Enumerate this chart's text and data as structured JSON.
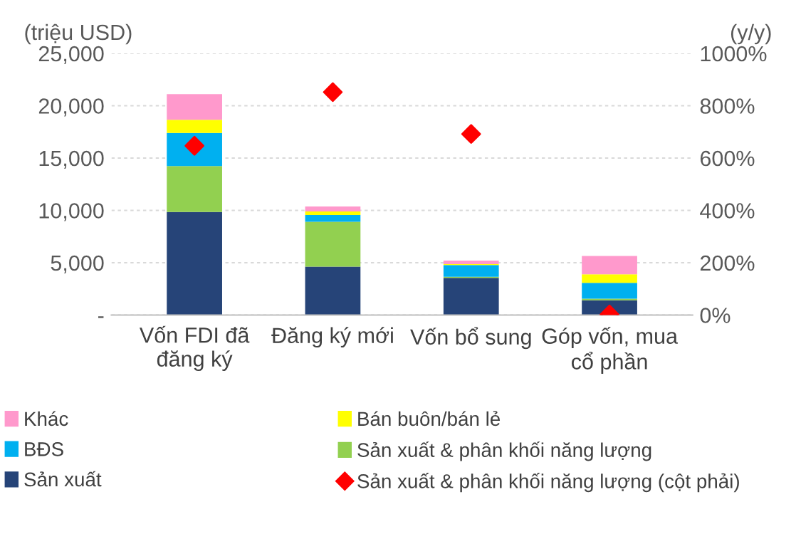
{
  "chart_data": {
    "type": "bar",
    "stacked": true,
    "ylabel": "(triệu USD)",
    "y2label": "(y/y)",
    "categories": [
      "Vốn FDI đã\nđăng ký",
      "Đăng ký mới",
      "Vốn bổ sung",
      "Góp vốn, mua\ncổ phần"
    ],
    "series": [
      {
        "name": "Sản xuất",
        "color": "#264478",
        "values": [
          9850,
          4630,
          3560,
          1410
        ]
      },
      {
        "name": "Sản xuất & phân khối năng lượng",
        "color": "#92d050",
        "values": [
          4380,
          4290,
          100,
          150
        ]
      },
      {
        "name": "BĐS",
        "color": "#00b0f0",
        "values": [
          3170,
          630,
          1120,
          1510
        ]
      },
      {
        "name": "Bán buôn/bán lẻ",
        "color": "#ffff00",
        "values": [
          1260,
          340,
          80,
          830
        ]
      },
      {
        "name": "Khác",
        "color": "#ff99cc",
        "values": [
          2440,
          490,
          340,
          1750
        ]
      },
      {
        "name": "Sản xuất & phân khối năng lượng (cột phải)",
        "type": "scatter",
        "axis": "y2",
        "marker": "diamond",
        "color": "#ff0000",
        "values": [
          647,
          852,
          692,
          2
        ]
      }
    ],
    "ylim": [
      0,
      25000
    ],
    "yticks": [
      {
        "value": 0,
        "label": "-"
      },
      {
        "value": 5000,
        "label": "5,000"
      },
      {
        "value": 10000,
        "label": "10,000"
      },
      {
        "value": 15000,
        "label": "15,000"
      },
      {
        "value": 20000,
        "label": "20,000"
      },
      {
        "value": 25000,
        "label": "25,000"
      }
    ],
    "y2lim": [
      0,
      1000
    ],
    "y2ticks": [
      {
        "value": 0,
        "label": "0%"
      },
      {
        "value": 200,
        "label": "200%"
      },
      {
        "value": 400,
        "label": "400%"
      },
      {
        "value": 600,
        "label": "600%"
      },
      {
        "value": 800,
        "label": "800%"
      },
      {
        "value": 1000,
        "label": "1000%"
      }
    ],
    "grid": "y",
    "legend": "bottom"
  }
}
